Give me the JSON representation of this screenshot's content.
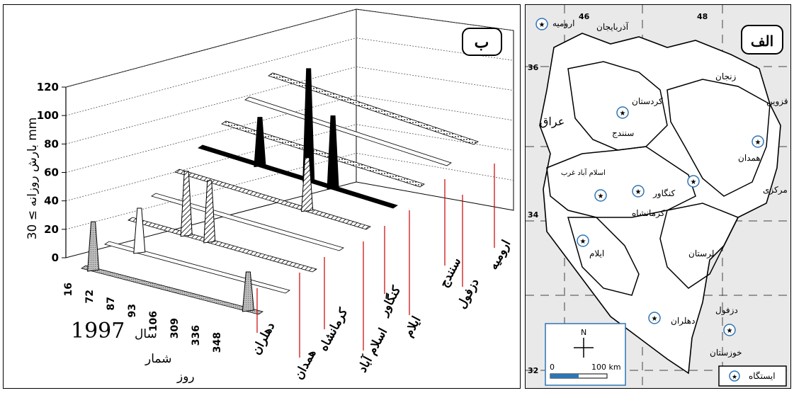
{
  "panel_b": {
    "label": "ب",
    "chart_data": {
      "type": "3d-bar",
      "title": "",
      "ylabel": "بارش روزانه ≥ 30 mm",
      "xlabel_year": "1997",
      "xlabel_sal": "سال",
      "xlabel_rooz": "روز",
      "xlabel_shomar": "شمار",
      "ylim": [
        0,
        120
      ],
      "y_ticks": [
        "0",
        "20",
        "40",
        "60",
        "80",
        "100",
        "120"
      ],
      "day_ticks": [
        "16",
        "72",
        "87",
        "93",
        "106",
        "309",
        "336",
        "348"
      ],
      "stations": [
        {
          "name": "دهلران",
          "values": [
            35,
            0,
            0,
            0,
            0,
            0,
            0,
            28
          ]
        },
        {
          "name": "همدان",
          "values": [
            0,
            32,
            0,
            0,
            0,
            0,
            0,
            0
          ]
        },
        {
          "name": "کرمانشاه",
          "values": [
            0,
            0,
            46,
            44,
            0,
            0,
            0,
            0
          ]
        },
        {
          "name": "اسلام آباد",
          "values": [
            0,
            0,
            0,
            0,
            0,
            0,
            0,
            0
          ]
        },
        {
          "name": "کنگاور",
          "values": [
            0,
            0,
            0,
            0,
            0,
            38,
            0,
            0
          ]
        },
        {
          "name": "ایلام",
          "values": [
            0,
            0,
            35,
            0,
            80,
            52,
            0,
            0
          ]
        },
        {
          "name": "دزفول",
          "values": [
            0,
            0,
            0,
            0,
            0,
            0,
            0,
            0
          ]
        },
        {
          "name": "سنندج",
          "values": [
            0,
            0,
            0,
            0,
            0,
            0,
            0,
            0
          ]
        },
        {
          "name": "ارومیه",
          "values": [
            0,
            0,
            0,
            0,
            0,
            0,
            0,
            0
          ]
        }
      ]
    }
  },
  "panel_a": {
    "label": "الف",
    "coords": [
      "46",
      "48",
      "36",
      "34",
      "32"
    ],
    "regions": [
      "آذربایجان",
      "ارومیه",
      "زنجان",
      "قزوین",
      "کردستان",
      "سنندج",
      "عراق",
      "همدان",
      "مرکزی",
      "اسلام آباد غرب",
      "کرمانشاه",
      "کنگاور",
      "ایلام",
      "لرستان",
      "دهلران",
      "دزفول",
      "خوزستان"
    ],
    "scalebar": {
      "north": "N",
      "zero": "0",
      "dist": "100 km"
    },
    "legend": "ایستگاه"
  }
}
